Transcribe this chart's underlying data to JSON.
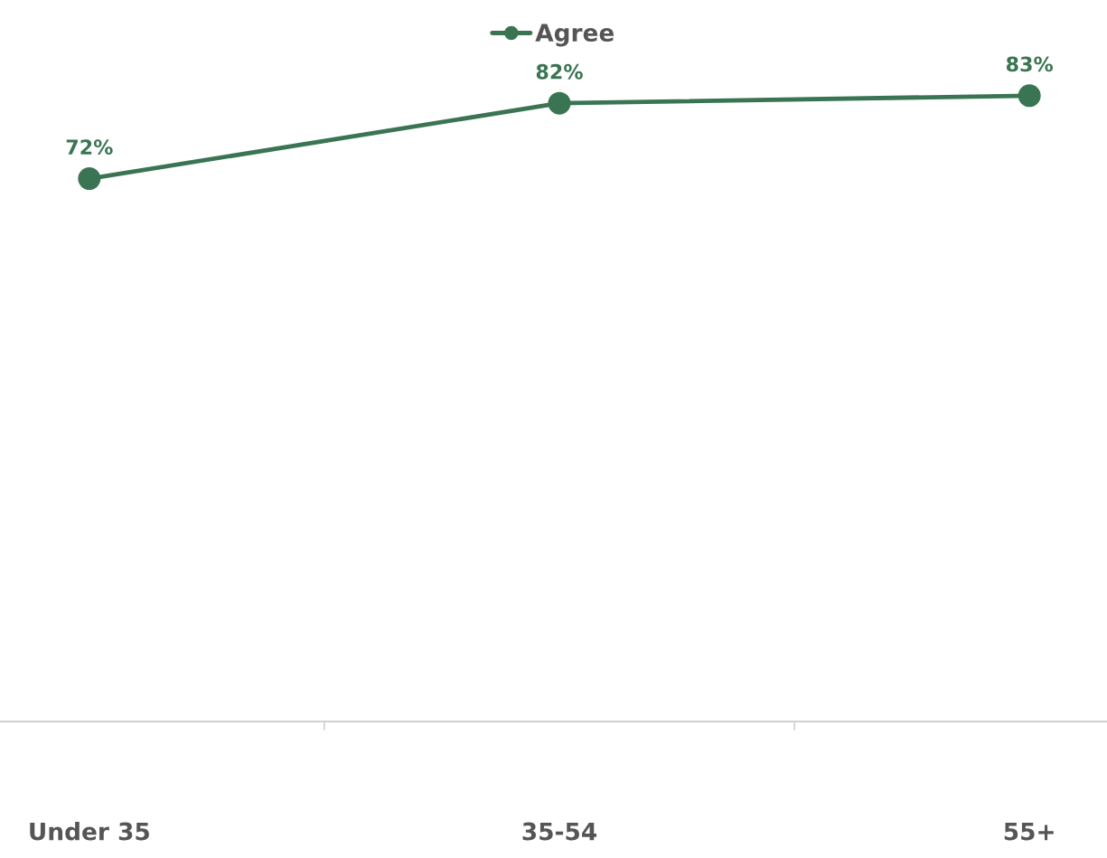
{
  "chart_data": {
    "type": "line",
    "categories": [
      "Under 35",
      "35-54",
      "55+"
    ],
    "series": [
      {
        "name": "Agree",
        "color": "#3a7553",
        "values": [
          72,
          82,
          83
        ],
        "value_labels": [
          "72%",
          "82%",
          "83%"
        ]
      }
    ],
    "marker": "circle",
    "line_style": "solid",
    "legend": "top",
    "grid": false
  }
}
